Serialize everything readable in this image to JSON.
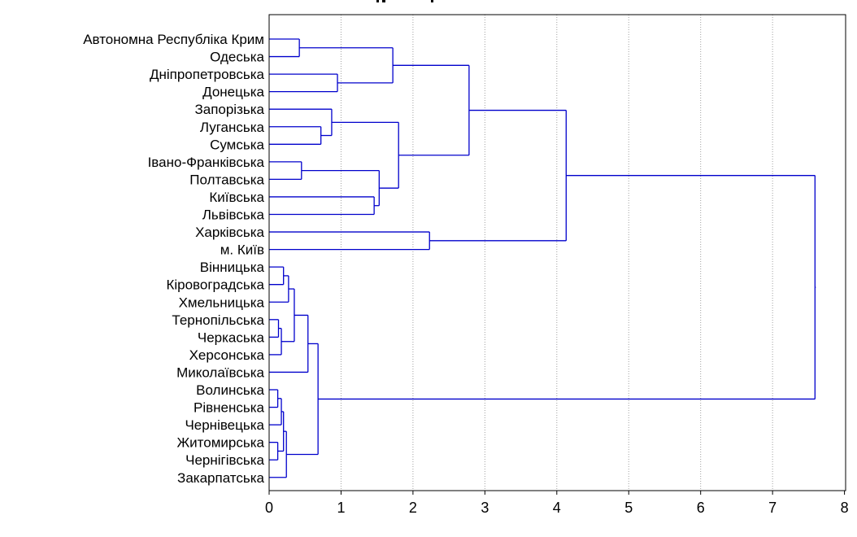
{
  "colors": {
    "background": "#ffffff",
    "branch": "#0000cc",
    "frame": "#000000",
    "grid": "#a0a0a0",
    "text": "#000000"
  },
  "chart_data": {
    "type": "dendrogram",
    "orientation": "horizontal",
    "title": "",
    "xlabel": "",
    "ylabel": "",
    "xlim": [
      0,
      8
    ],
    "x_ticks": [
      0,
      1,
      2,
      3,
      4,
      5,
      6,
      7,
      8
    ],
    "x_tick_labels": [
      "0",
      "1",
      "2",
      "3",
      "4",
      "5",
      "6",
      "7",
      "8"
    ],
    "grid": "vertical dotted",
    "leaves": [
      "Автономна Республіка Крим",
      "Одеська",
      "Дніпропетровська",
      "Донецька",
      "Запорізька",
      "Луганська",
      "Сумська",
      "Івано-Франківська",
      "Полтавська",
      "Київська",
      "Львівська",
      "Харківська",
      "м. Київ",
      "Вінницька",
      "Кіровоградська",
      "Хмельницька",
      "Тернопільська",
      "Черкаська",
      "Херсонська",
      "Миколаївська",
      "Волинська",
      "Рівненська",
      "Чернівецька",
      "Житомирська",
      "Чернігівська",
      "Закарпатська"
    ],
    "merges": [
      {
        "a": "L0",
        "b": "L1",
        "height": 0.42
      },
      {
        "a": "L2",
        "b": "L3",
        "height": 0.95
      },
      {
        "a": "M0",
        "b": "M1",
        "height": 1.72
      },
      {
        "a": "L5",
        "b": "L6",
        "height": 0.72
      },
      {
        "a": "L4",
        "b": "M3",
        "height": 0.87
      },
      {
        "a": "L7",
        "b": "L8",
        "height": 0.45
      },
      {
        "a": "L9",
        "b": "L10",
        "height": 1.46
      },
      {
        "a": "M5",
        "b": "M6",
        "height": 1.53
      },
      {
        "a": "M4",
        "b": "M7",
        "height": 1.8
      },
      {
        "a": "M2",
        "b": "M8",
        "height": 2.78
      },
      {
        "a": "L11",
        "b": "L12",
        "height": 2.23
      },
      {
        "a": "M9",
        "b": "M10",
        "height": 4.13
      },
      {
        "a": "L13",
        "b": "L14",
        "height": 0.2
      },
      {
        "a": "M12",
        "b": "L15",
        "height": 0.27
      },
      {
        "a": "L16",
        "b": "L17",
        "height": 0.13
      },
      {
        "a": "M14",
        "b": "L18",
        "height": 0.17
      },
      {
        "a": "M13",
        "b": "M15",
        "height": 0.35
      },
      {
        "a": "M16",
        "b": "L19",
        "height": 0.54
      },
      {
        "a": "L20",
        "b": "L21",
        "height": 0.12
      },
      {
        "a": "M18",
        "b": "L22",
        "height": 0.17
      },
      {
        "a": "L23",
        "b": "L24",
        "height": 0.12
      },
      {
        "a": "M19",
        "b": "M20",
        "height": 0.2
      },
      {
        "a": "M21",
        "b": "L25",
        "height": 0.24
      },
      {
        "a": "M17",
        "b": "M22",
        "height": 0.68
      },
      {
        "a": "M11",
        "b": "M23",
        "height": 7.59
      }
    ]
  }
}
